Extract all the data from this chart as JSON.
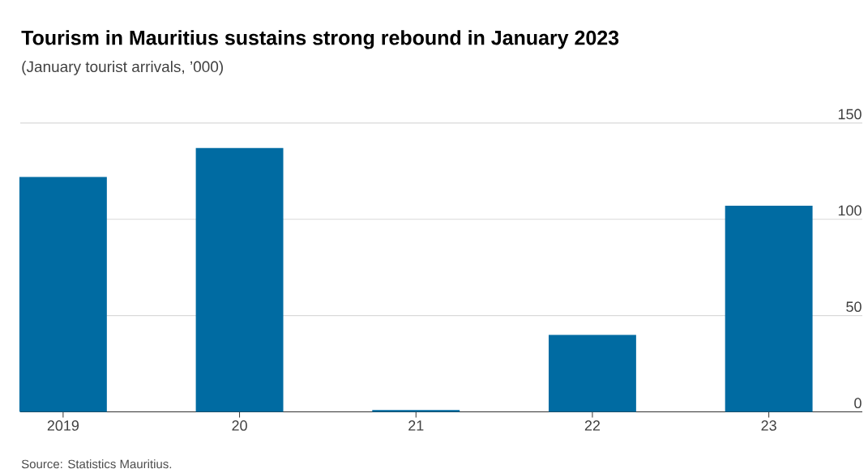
{
  "chart_data": {
    "type": "bar",
    "title": "Tourism in Mauritius sustains strong rebound in January 2023",
    "subtitle": "(January tourist arrivals, ’000)",
    "categories": [
      "2019",
      "20",
      "21",
      "22",
      "23"
    ],
    "values": [
      122,
      137,
      1,
      40,
      107
    ],
    "color": "#006ba2",
    "ylim": [
      0,
      150
    ],
    "yticks": [
      0,
      50,
      100,
      150
    ],
    "grid": "y",
    "annotations": [
      "Source: Statistics Mauritius."
    ]
  }
}
